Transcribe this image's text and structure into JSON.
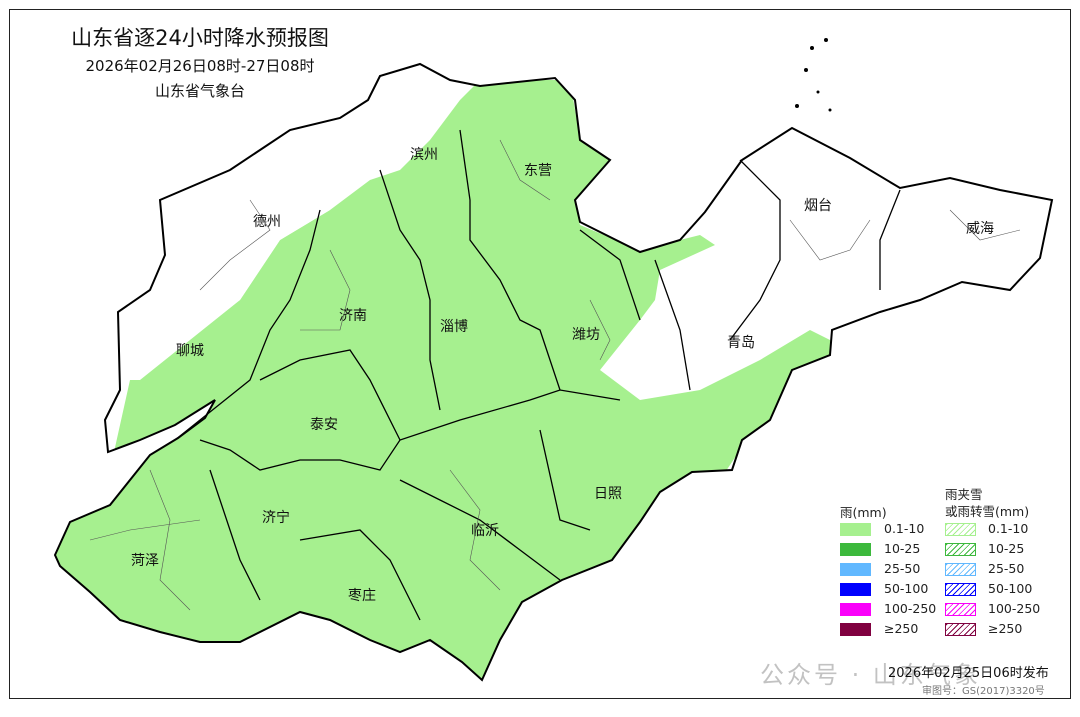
{
  "header": {
    "title": "山东省逐24小时降水预报图",
    "period": "2026年02月26日08时-27日08时",
    "issuer": "山东省气象台"
  },
  "cities": [
    "滨州",
    "东营",
    "德州",
    "烟台",
    "威海",
    "济南",
    "淄博",
    "潍坊",
    "聊城",
    "青岛",
    "泰安",
    "日照",
    "济宁",
    "临沂",
    "菏泽",
    "枣庄"
  ],
  "forecast": {
    "rain_area_category": "0.1-10",
    "rain_area_color": "#a6f08f"
  },
  "legend": {
    "rain_title": "雨(mm)",
    "mix_title_1": "雨夹雪",
    "mix_title_2": "或雨转雪(mm)",
    "levels": [
      {
        "label": "0.1-10",
        "color": "#a6f08f"
      },
      {
        "label": "10-25",
        "color": "#3cb93c"
      },
      {
        "label": "25-50",
        "color": "#61b8ff"
      },
      {
        "label": "50-100",
        "color": "#0000fe"
      },
      {
        "label": "100-250",
        "color": "#fa00fa"
      },
      {
        "label": "≥250",
        "color": "#800040"
      }
    ]
  },
  "footer": {
    "issued": "2026年02月25日06时发布",
    "approval": "审图号：GS(2017)3320号",
    "watermark": "公众号 · 山东气象"
  }
}
